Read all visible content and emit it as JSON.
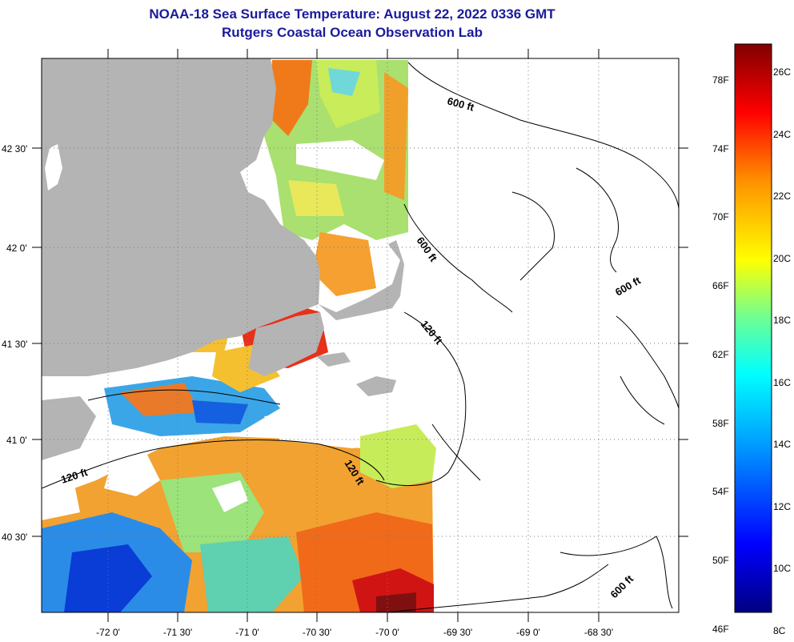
{
  "header": {
    "title": "NOAA-18 Sea Surface Temperature:  August 22, 2022 0336 GMT",
    "subtitle": "Rutgers Coastal Ocean Observation Lab"
  },
  "map": {
    "lon_ticks": [
      "-72 0'",
      "-71 30'",
      "-71 0'",
      "-70 30'",
      "-70 0'",
      "-69 30'",
      "-69 0'",
      "-68 30'"
    ],
    "lat_ticks": [
      "42 30'",
      "42 0'",
      "41 30'",
      "41 0'",
      "40 30'"
    ],
    "contour_labels": [
      "600 ft",
      "600 ft",
      "600 ft",
      "600 ft",
      "120 ft",
      "120 ft",
      "120 ft"
    ]
  },
  "colorbar": {
    "fahrenheit": [
      "78F",
      "74F",
      "70F",
      "66F",
      "62F",
      "58F",
      "54F",
      "50F",
      "46F"
    ],
    "celsius": [
      "26C",
      "24C",
      "22C",
      "20C",
      "18C",
      "16C",
      "14C",
      "12C",
      "10C",
      "8C"
    ],
    "colors": [
      "#000080",
      "#0000ff",
      "#00a0ff",
      "#00ffff",
      "#70ff90",
      "#ffff00",
      "#ff9000",
      "#ff0000",
      "#800000"
    ]
  },
  "colors": {
    "land": "#b4b4b4",
    "title": "#1a1a9c"
  }
}
